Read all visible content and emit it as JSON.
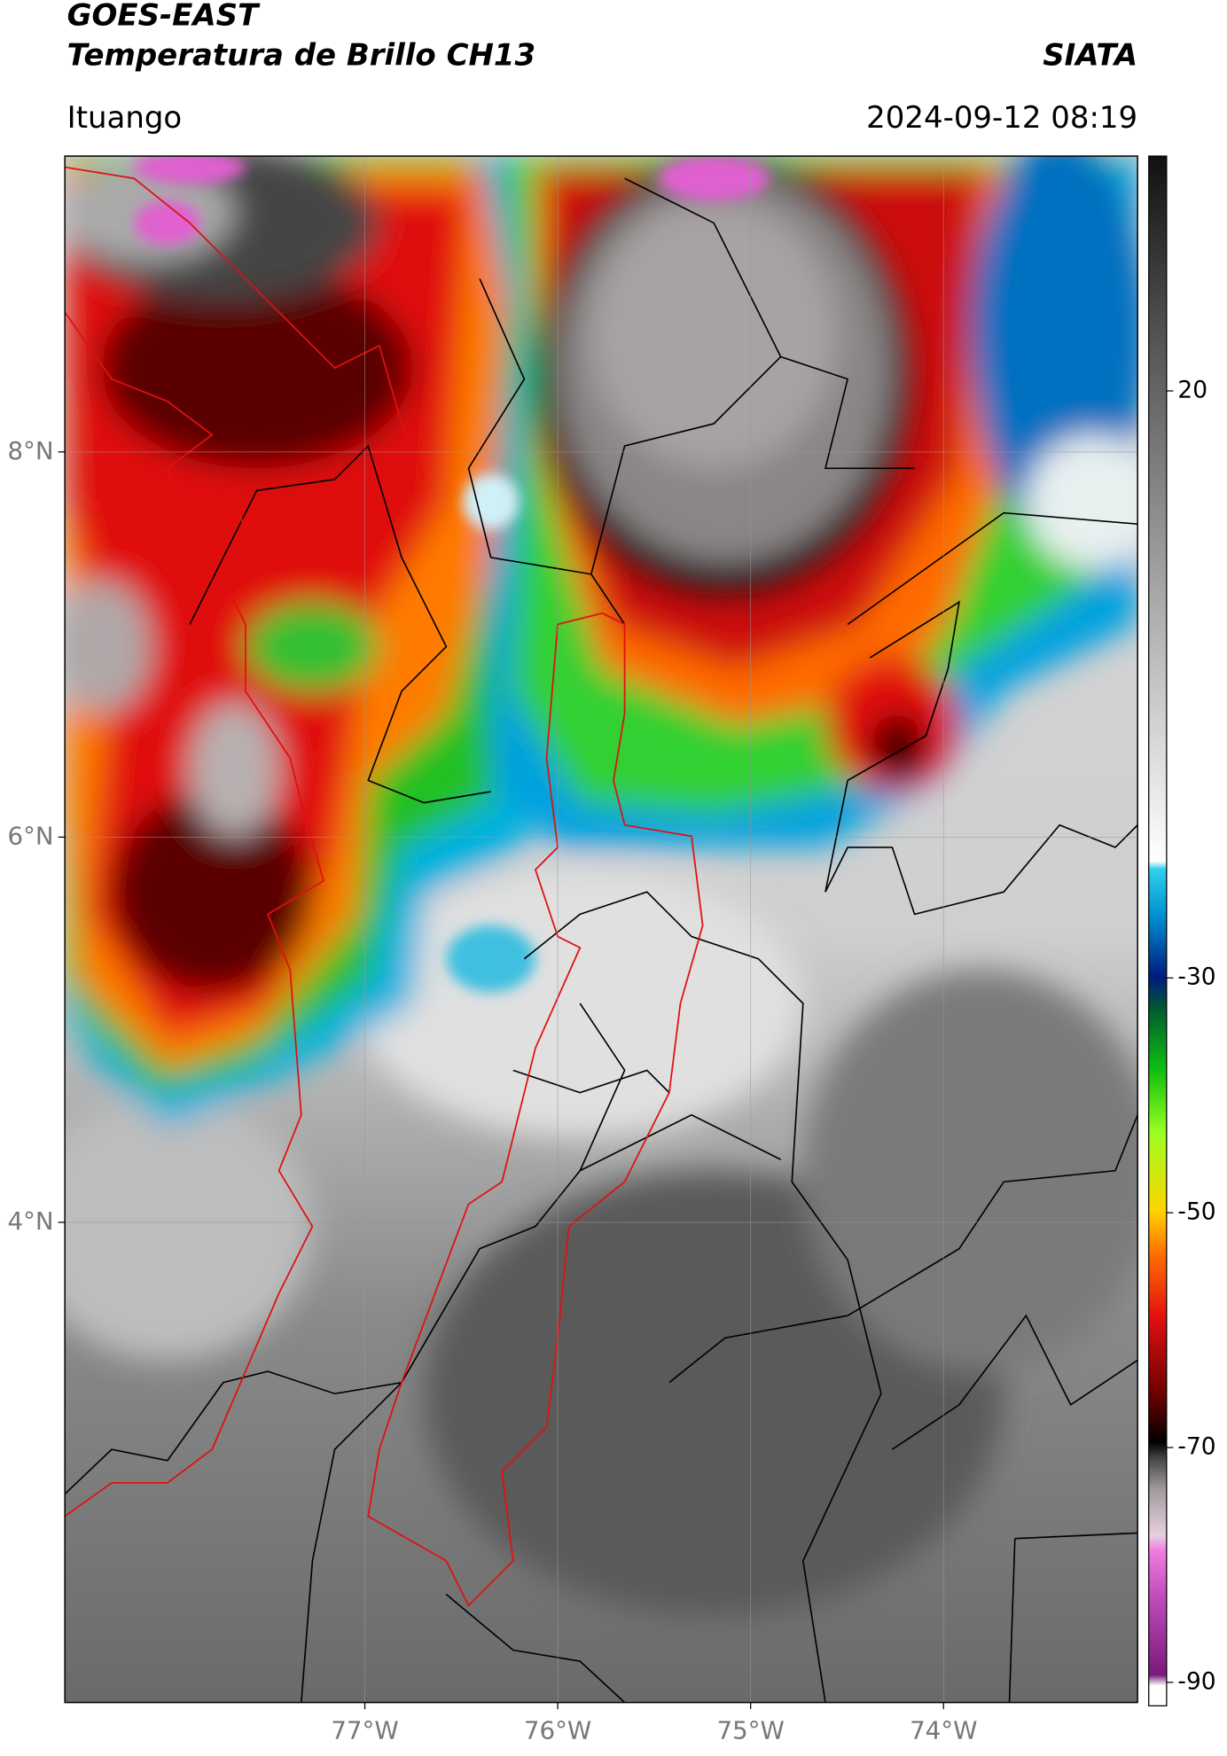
{
  "header": {
    "satellite": "GOES-EAST",
    "product": "Temperatura de Brillo CH13",
    "organization": "SIATA",
    "location": "Ituango",
    "timestamp": "2024-09-12 08:19"
  },
  "map": {
    "xlim": [
      -78.555,
      -72.994
    ],
    "ylim": [
      1.507,
      9.536
    ],
    "xticks": [
      {
        "value": -77,
        "label": "77°W"
      },
      {
        "value": -76,
        "label": "76°W"
      },
      {
        "value": -75,
        "label": "75°W"
      },
      {
        "value": -74,
        "label": "74°W"
      }
    ],
    "yticks": [
      {
        "value": 8,
        "label": "8°N"
      },
      {
        "value": 6,
        "label": "6°N"
      },
      {
        "value": 4,
        "label": "4°N"
      }
    ],
    "grid": true
  },
  "colorbar": {
    "lim": [
      -92,
      40
    ],
    "ticks": [
      20,
      -30,
      -50,
      -70,
      -90
    ]
  }
}
